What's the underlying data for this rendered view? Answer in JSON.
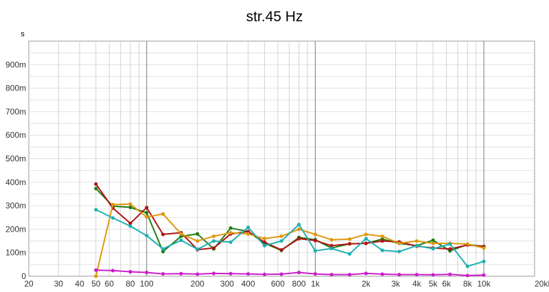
{
  "chart_data": {
    "type": "line",
    "title": "str.45 Hz",
    "y_unit_label": "s",
    "x_scale": "log",
    "x_range": [
      20,
      20000
    ],
    "y_range": [
      0,
      1.0
    ],
    "grid": true,
    "x_ticks": [
      {
        "value": 20,
        "label": "20"
      },
      {
        "value": 30,
        "label": "30"
      },
      {
        "value": 40,
        "label": "40"
      },
      {
        "value": 50,
        "label": "50"
      },
      {
        "value": 60,
        "label": "60"
      },
      {
        "value": 80,
        "label": "80"
      },
      {
        "value": 100,
        "label": "100"
      },
      {
        "value": 200,
        "label": "200"
      },
      {
        "value": 300,
        "label": "300"
      },
      {
        "value": 400,
        "label": "400"
      },
      {
        "value": 600,
        "label": "600"
      },
      {
        "value": 800,
        "label": "800"
      },
      {
        "value": 1000,
        "label": "1k"
      },
      {
        "value": 2000,
        "label": "2k"
      },
      {
        "value": 3000,
        "label": "3k"
      },
      {
        "value": 4000,
        "label": "4k"
      },
      {
        "value": 5000,
        "label": "5k"
      },
      {
        "value": 6000,
        "label": "6k"
      },
      {
        "value": 8000,
        "label": "8k"
      },
      {
        "value": 10000,
        "label": "10k"
      },
      {
        "value": 20000,
        "label": "20kHz"
      }
    ],
    "y_ticks": [
      {
        "value": 0,
        "label": "0"
      },
      {
        "value": 0.1,
        "label": "100m"
      },
      {
        "value": 0.2,
        "label": "200m"
      },
      {
        "value": 0.3,
        "label": "300m"
      },
      {
        "value": 0.4,
        "label": "400m"
      },
      {
        "value": 0.5,
        "label": "500m"
      },
      {
        "value": 0.6,
        "label": "600m"
      },
      {
        "value": 0.7,
        "label": "700m"
      },
      {
        "value": 0.8,
        "label": "800m"
      },
      {
        "value": 0.9,
        "label": "900m"
      }
    ],
    "x": [
      50,
      63,
      80,
      100,
      125,
      160,
      200,
      250,
      315,
      400,
      500,
      630,
      800,
      1000,
      1250,
      1600,
      2000,
      2500,
      3150,
      4000,
      5000,
      6300,
      8000,
      10000
    ],
    "series": [
      {
        "color": "#1e7d12",
        "values": [
          0.373,
          0.298,
          0.293,
          0.27,
          0.105,
          0.17,
          0.18,
          0.116,
          0.205,
          0.19,
          0.14,
          0.11,
          0.165,
          0.155,
          0.12,
          0.138,
          0.14,
          0.158,
          0.14,
          0.13,
          0.153,
          0.108,
          0.135,
          0.127
        ]
      },
      {
        "color": "#b01414",
        "values": [
          0.392,
          0.29,
          0.225,
          0.292,
          0.178,
          0.185,
          0.113,
          0.12,
          0.18,
          0.19,
          0.145,
          0.112,
          0.16,
          0.152,
          0.13,
          0.138,
          0.14,
          0.15,
          0.146,
          0.128,
          0.12,
          0.116,
          0.133,
          0.126
        ]
      },
      {
        "color": "#e0960a",
        "values": [
          0.0,
          0.305,
          0.307,
          0.252,
          0.265,
          0.18,
          0.15,
          0.17,
          0.185,
          0.18,
          0.16,
          0.17,
          0.2,
          0.178,
          0.155,
          0.158,
          0.178,
          0.17,
          0.14,
          0.15,
          0.14,
          0.14,
          0.137,
          0.12
        ]
      },
      {
        "color": "#1fb0b0",
        "values": [
          0.283,
          0.248,
          0.213,
          0.173,
          0.116,
          0.153,
          0.115,
          0.15,
          0.145,
          0.208,
          0.13,
          0.15,
          0.22,
          0.108,
          0.118,
          0.095,
          0.16,
          0.11,
          0.105,
          0.13,
          0.117,
          0.137,
          0.042,
          0.063
        ]
      },
      {
        "color": "#cc1ccc",
        "values": [
          0.026,
          0.024,
          0.019,
          0.016,
          0.01,
          0.011,
          0.009,
          0.012,
          0.011,
          0.01,
          0.008,
          0.009,
          0.016,
          0.01,
          0.007,
          0.007,
          0.012,
          0.009,
          0.007,
          0.007,
          0.006,
          0.008,
          0.003,
          0.005
        ]
      }
    ]
  }
}
